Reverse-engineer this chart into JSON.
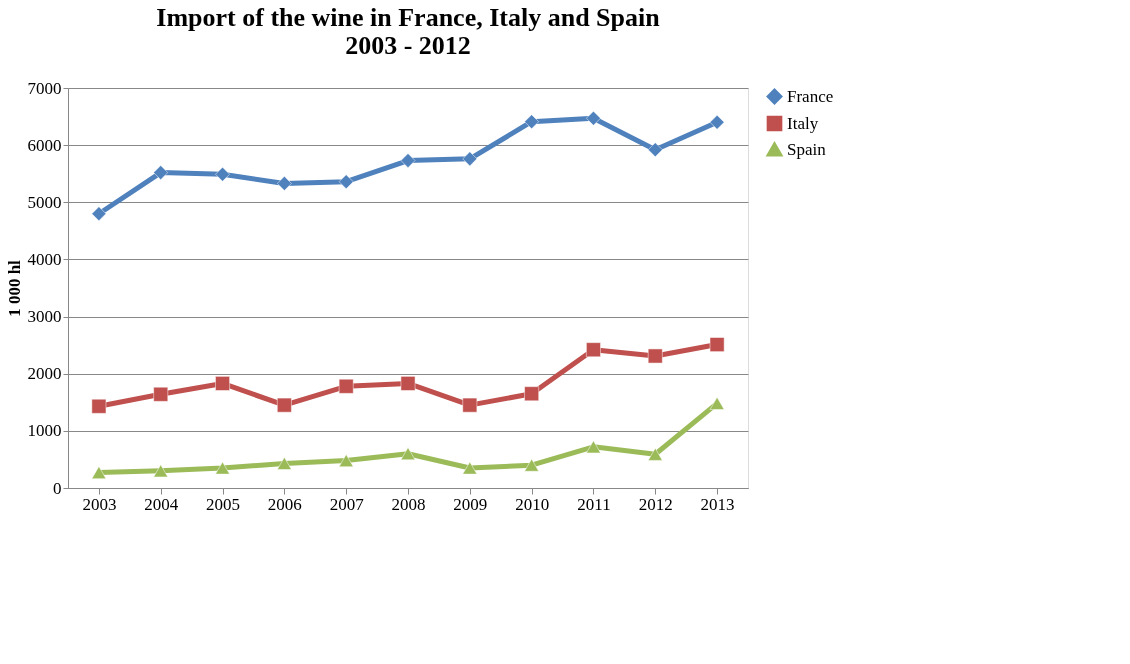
{
  "chart_data": {
    "type": "line",
    "title": "Import of the wine in France, Italy and Spain\n2003 - 2012",
    "ylabel": "1 000 hl",
    "categories": [
      "2003",
      "2004",
      "2005",
      "2006",
      "2007",
      "2008",
      "2009",
      "2010",
      "2011",
      "2012",
      "2013"
    ],
    "series": [
      {
        "name": "France",
        "color": "#4f81bd",
        "marker": "diamond",
        "values": [
          4800,
          5520,
          5490,
          5330,
          5360,
          5730,
          5760,
          6410,
          6470,
          5920,
          6400
        ]
      },
      {
        "name": "Italy",
        "color": "#c0504d",
        "marker": "square",
        "values": [
          1430,
          1640,
          1830,
          1450,
          1780,
          1830,
          1450,
          1650,
          2420,
          2310,
          2510
        ]
      },
      {
        "name": "Spain",
        "color": "#9bbb59",
        "marker": "triangle",
        "values": [
          270,
          300,
          350,
          430,
          480,
          600,
          350,
          400,
          720,
          590,
          1480
        ]
      }
    ],
    "ylim": [
      0,
      7000
    ],
    "yticks": [
      0,
      1000,
      2000,
      3000,
      4000,
      5000,
      6000,
      7000
    ],
    "grid": "y",
    "legend": "right",
    "line_style": "solid"
  }
}
